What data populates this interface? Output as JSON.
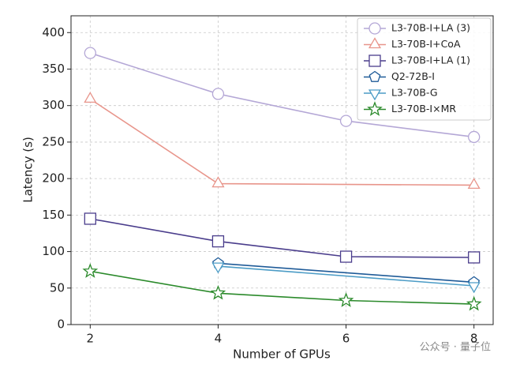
{
  "chart_data": {
    "type": "line",
    "x_label": "Number of GPUs",
    "y_label": "Latency (s)",
    "xlim": [
      1.7,
      8.3
    ],
    "xticks": [
      2,
      4,
      6,
      8
    ],
    "ylim": [
      0,
      423
    ],
    "yticks": [
      0,
      50,
      100,
      150,
      200,
      250,
      300,
      350,
      400
    ],
    "grid": true,
    "legend": "upper right",
    "watermark": "公众号 · 量子位",
    "series": [
      {
        "name": "L3-70B-I+LA (3)",
        "color": "#b4a7d6",
        "marker": "circle",
        "x": [
          2,
          4,
          6,
          8
        ],
        "values": [
          372,
          316,
          279,
          257
        ]
      },
      {
        "name": "L3-70B-I+CoA",
        "color": "#e8958b",
        "marker": "triangle-up",
        "x": [
          2,
          4,
          8
        ],
        "values": [
          309,
          193,
          191
        ]
      },
      {
        "name": "L3-70B-I+LA (1)",
        "color": "#4a3d8c",
        "marker": "square",
        "x": [
          2,
          4,
          6,
          8
        ],
        "values": [
          145,
          114,
          93,
          92
        ]
      },
      {
        "name": "Q2-72B-I",
        "color": "#1f5b98",
        "marker": "pentagon",
        "x": [
          4,
          8
        ],
        "values": [
          84,
          58
        ]
      },
      {
        "name": "L3-70B-G",
        "color": "#4c9cc6",
        "marker": "triangle-down",
        "x": [
          4,
          8
        ],
        "values": [
          80,
          53
        ]
      },
      {
        "name": "L3-70B-I×MR",
        "color": "#2b8a2b",
        "marker": "star",
        "x": [
          2,
          4,
          6,
          8
        ],
        "values": [
          73,
          43,
          33,
          28
        ]
      }
    ]
  }
}
